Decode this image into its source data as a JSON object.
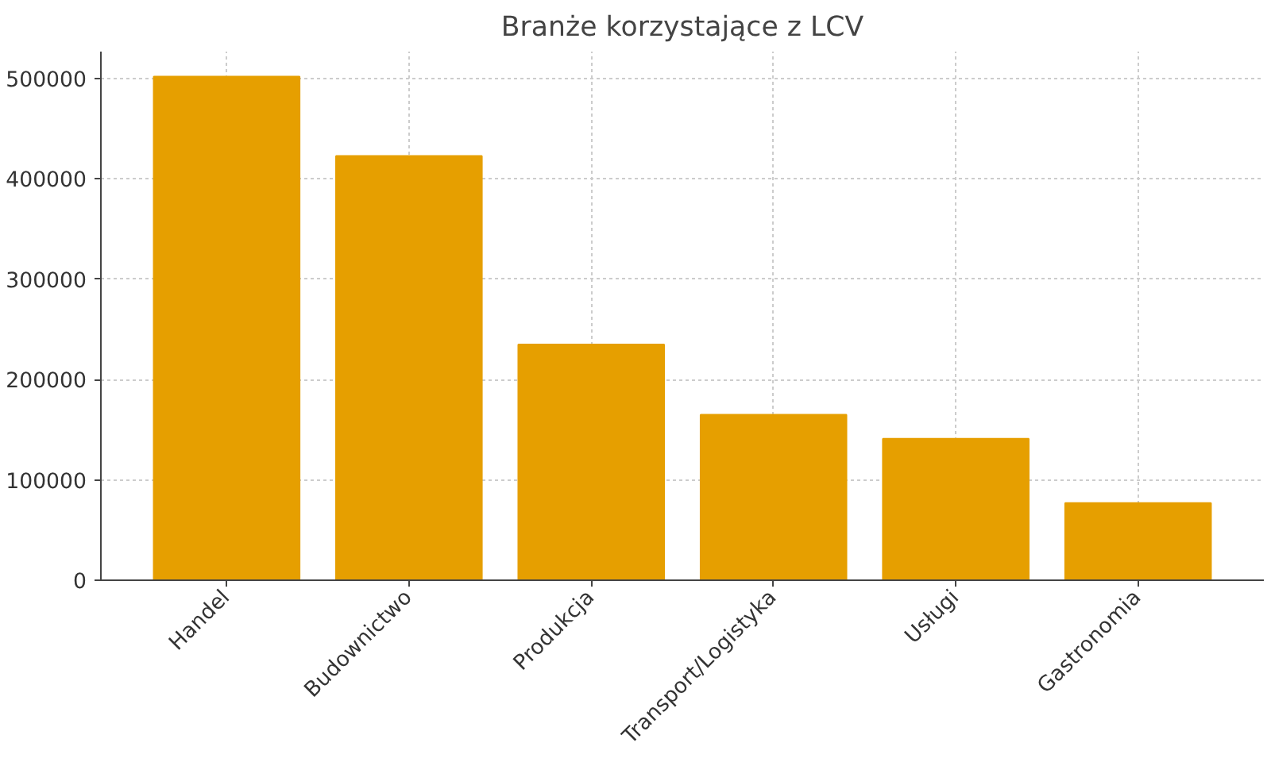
{
  "chart_data": {
    "type": "bar",
    "title": "Branże korzystające z LCV",
    "categories": [
      "Handel",
      "Budownictwo",
      "Produkcja",
      "Transport/Logistyka",
      "Usługi",
      "Gastronomia"
    ],
    "values": [
      502000,
      423000,
      235000,
      165000,
      141000,
      77000
    ],
    "color": "#e69f00",
    "ylim": [
      0,
      527000
    ],
    "yticks": [
      0,
      100000,
      200000,
      300000,
      400000,
      500000
    ],
    "grid": true
  }
}
